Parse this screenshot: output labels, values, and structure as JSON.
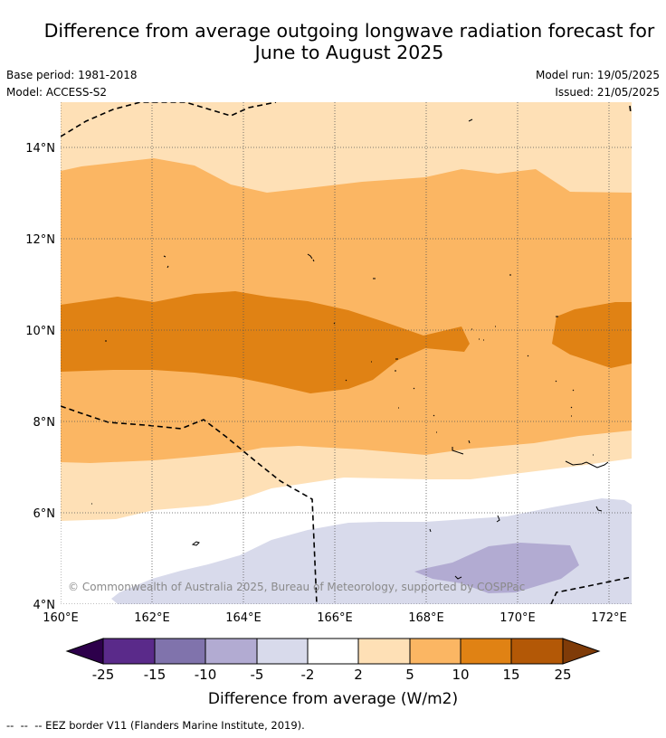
{
  "title": {
    "line1": "Difference from average outgoing longwave radiation forecast for",
    "line2": "June to August 2025"
  },
  "info_left": {
    "base_period": "Base period: 1981-2018",
    "model": "Model: ACCESS-S2"
  },
  "info_right": {
    "model_run": "Model run: 19/05/2025",
    "issued": "Issued: 21/05/2025"
  },
  "map": {
    "lat_ticks": [
      "4°N",
      "6°N",
      "8°N",
      "10°N",
      "12°N",
      "14°N"
    ],
    "lon_ticks": [
      "160°E",
      "162°E",
      "164°E",
      "166°E",
      "168°E",
      "170°E",
      "172°E"
    ],
    "copyright": "© Commonwealth of Australia 2025, Bureau of Meteorology, supported by COSPPac",
    "extent": {
      "lon": [
        160,
        172.5
      ],
      "lat": [
        4,
        15
      ]
    },
    "grid": true
  },
  "colorbar": {
    "title": "Difference from average (W/m2)",
    "labels": [
      "-25",
      "-15",
      "-10",
      "-5",
      "-2",
      "2",
      "5",
      "10",
      "15",
      "25"
    ],
    "colors": [
      "#2d004b",
      "#5a2a8a",
      "#8073ac",
      "#b2abd2",
      "#d8daeb",
      "#ffffff",
      "#fee0b6",
      "#fbb663",
      "#e08214",
      "#b35806",
      "#7f3b08"
    ]
  },
  "footer": "--  --  -- EEZ border V11 (Flanders Marine Institute, 2019)."
}
